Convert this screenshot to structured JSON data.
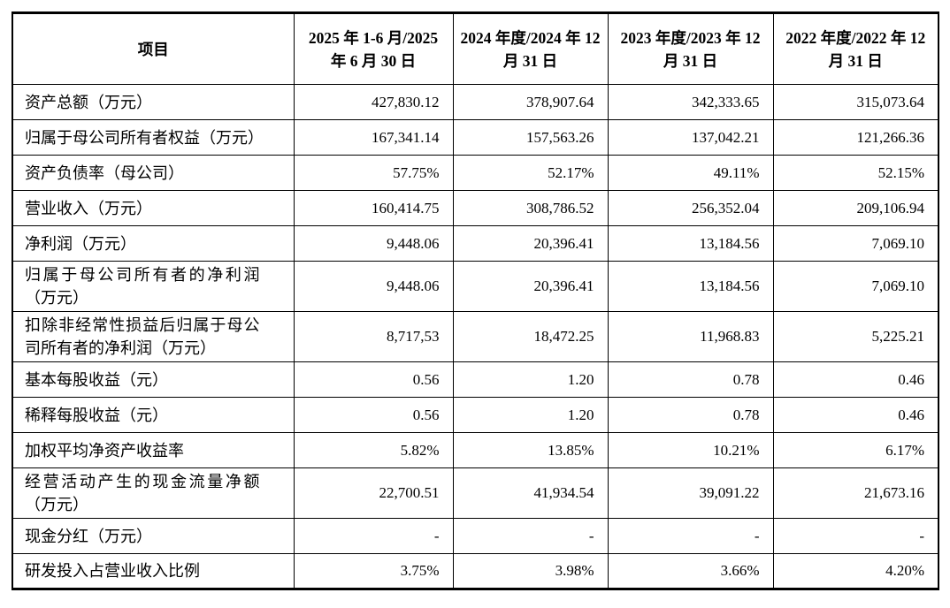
{
  "page": {
    "background_color": "#ffffff",
    "text_color": "#000000",
    "border_color": "#000000"
  },
  "table": {
    "columns": [
      "项目",
      "2025 年 1-6 月/2025 年 6 月 30 日",
      "2024 年度/2024 年 12 月 31 日",
      "2023 年度/2023 年 12 月 31 日",
      "2022 年度/2022 年 12 月 31 日"
    ],
    "rows": [
      {
        "label": "资产总额（万元）",
        "values": [
          "427,830.12",
          "378,907.64",
          "342,333.65",
          "315,073.64"
        ]
      },
      {
        "label": "归属于母公司所有者权益（万元）",
        "values": [
          "167,341.14",
          "157,563.26",
          "137,042.21",
          "121,266.36"
        ]
      },
      {
        "label": "资产负债率（母公司）",
        "values": [
          "57.75%",
          "52.17%",
          "49.11%",
          "52.15%"
        ]
      },
      {
        "label": "营业收入（万元）",
        "values": [
          "160,414.75",
          "308,786.52",
          "256,352.04",
          "209,106.94"
        ]
      },
      {
        "label": "净利润（万元）",
        "values": [
          "9,448.06",
          "20,396.41",
          "13,184.56",
          "7,069.10"
        ]
      },
      {
        "label": "归属于母公司所有者的净利润（万元）",
        "values": [
          "9,448.06",
          "20,396.41",
          "13,184.56",
          "7,069.10"
        ]
      },
      {
        "label": "扣除非经常性损益后归属于母公司所有者的净利润（万元）",
        "values": [
          "8,717,53",
          "18,472.25",
          "11,968.83",
          "5,225.21"
        ]
      },
      {
        "label": "基本每股收益（元）",
        "values": [
          "0.56",
          "1.20",
          "0.78",
          "0.46"
        ]
      },
      {
        "label": "稀释每股收益（元）",
        "values": [
          "0.56",
          "1.20",
          "0.78",
          "0.46"
        ]
      },
      {
        "label": "加权平均净资产收益率",
        "values": [
          "5.82%",
          "13.85%",
          "10.21%",
          "6.17%"
        ]
      },
      {
        "label": "经营活动产生的现金流量净额（万元）",
        "values": [
          "22,700.51",
          "41,934.54",
          "39,091.22",
          "21,673.16"
        ]
      },
      {
        "label": "现金分红（万元）",
        "values": [
          "-",
          "-",
          "-",
          "-"
        ]
      },
      {
        "label": "研发投入占营业收入比例",
        "values": [
          "3.75%",
          "3.98%",
          "3.66%",
          "4.20%"
        ]
      }
    ]
  }
}
